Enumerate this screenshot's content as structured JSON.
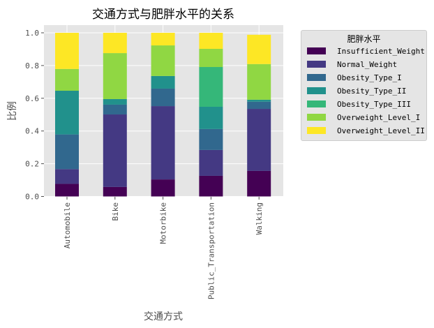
{
  "chart_data": {
    "type": "bar",
    "stacked": true,
    "title": "交通方式与肥胖水平的关系",
    "xlabel": "交通方式",
    "ylabel": "比例",
    "ylim": [
      0,
      1.05
    ],
    "yticks": [
      "0.0",
      "0.2",
      "0.4",
      "0.6",
      "0.8",
      "1.0"
    ],
    "grid": true,
    "legend_position": "outside-right-top",
    "legend_title": "肥胖水平",
    "categories": [
      "Automobile",
      "Bike",
      "Motorbike",
      "Public_Transportation",
      "Walking"
    ],
    "series": [
      {
        "name": "Insufficient_Weight",
        "color": "#440154",
        "values": [
          0.077,
          0.058,
          0.104,
          0.126,
          0.156
        ]
      },
      {
        "name": "Normal_Weight",
        "color": "#443983",
        "values": [
          0.09,
          0.443,
          0.448,
          0.158,
          0.379
        ]
      },
      {
        "name": "Obesity_Type_I",
        "color": "#31688e",
        "values": [
          0.212,
          0.06,
          0.107,
          0.128,
          0.044
        ]
      },
      {
        "name": "Obesity_Type_II",
        "color": "#21918c",
        "values": [
          0.267,
          0.034,
          0.077,
          0.136,
          0.012
        ]
      },
      {
        "name": "Obesity_Type_III",
        "color": "#35b779",
        "values": [
          0.0,
          0.0,
          0.0,
          0.243,
          0.0
        ]
      },
      {
        "name": "Overweight_Level_I",
        "color": "#90d743",
        "values": [
          0.133,
          0.281,
          0.187,
          0.111,
          0.218
        ]
      },
      {
        "name": "Overweight_Level_II",
        "color": "#fde725",
        "values": [
          0.221,
          0.124,
          0.077,
          0.098,
          0.179
        ]
      }
    ]
  },
  "colors": {
    "plot_background": "#e5e5e5",
    "grid": "#ffffff"
  }
}
